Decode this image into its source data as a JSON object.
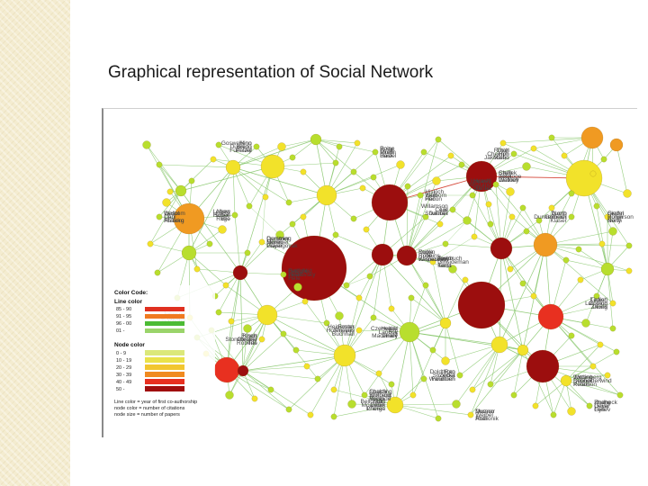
{
  "slide": {
    "title": "Graphical representation of Social Network"
  },
  "colors": {
    "edge": "#86c76a",
    "edge_red": "#d23a2a",
    "node_yellow": "#f2e22a",
    "node_lightgreen": "#b8de2e",
    "node_orange": "#f09a22",
    "node_red": "#e83020",
    "node_darkred": "#9c0e0e"
  },
  "legend": {
    "heading": "Color Code:",
    "line_heading": "Line color",
    "line_items": [
      {
        "label": "85 - 90",
        "color": "#e03020"
      },
      {
        "label": "91 - 95",
        "color": "#f07a20"
      },
      {
        "label": "96 - 00",
        "color": "#4cbb34"
      },
      {
        "label": "01 -",
        "color": "#9ad46a"
      }
    ],
    "node_heading": "Node color",
    "node_items": [
      {
        "label": "0 - 9",
        "color": "#dbe87a"
      },
      {
        "label": "10 - 19",
        "color": "#eae24a"
      },
      {
        "label": "20 - 29",
        "color": "#f2c630"
      },
      {
        "label": "30 - 39",
        "color": "#f08a20"
      },
      {
        "label": "40 - 49",
        "color": "#e83020"
      },
      {
        "label": "50 -",
        "color": "#a00e0e"
      }
    ],
    "notes": [
      "Line color = year of first co-authorship",
      "node color = number of citations",
      "node size = number of papers"
    ]
  },
  "network": {
    "labels": [
      "Chen",
      "Landoy",
      "Wisniowsky",
      "Belloradu",
      "Schneiderwind",
      "Furinsky",
      "Poise",
      "Hoh",
      "North",
      "Ledish",
      "Deyel",
      "Wandtuch",
      "Spalding",
      "Stonebroker",
      "Prasegoyak",
      "Alken",
      "Chu",
      "Dauber",
      "Taylor",
      "Hofenstein",
      "Podon",
      "Igarashi",
      "Zelikovsky",
      "Cheng",
      "Muzner",
      "Dunkelmeier",
      "Dietrich",
      "Czerwecki",
      "Robbins",
      "Lhoren",
      "Jording",
      "Bredo",
      "Baidel",
      "Thiel",
      "Pulkerson",
      "Lewis",
      "Zhang",
      "Stroeber",
      "Roobide",
      "Knorr",
      "Hemmel",
      "Bro",
      "Gesol",
      "Cecil",
      "Kerst",
      "Heineman",
      "Welborn",
      "Ullman",
      "Bellfuhlid",
      "Kriegel",
      "Aharonik",
      "North",
      "Ecfoloqe",
      "Mackinley",
      "Yorke",
      "Moalihan",
      "Peterson",
      "Goswelleno",
      "Pirelli",
      "Jakobsen",
      "Siedel",
      "Lamping",
      "Fenev",
      "Rao",
      "Winnicot",
      "Roberts",
      "Gerstner",
      "Scholl",
      "Ahlberg",
      "Willamson",
      "Ginsideman",
      "Buchhall",
      "Hiskich",
      "Wistrand",
      "Hele",
      "Johnson",
      "Weibel",
      "Klaser",
      "Steffek",
      "Fsk",
      "Kerpeckjew",
      "Mart",
      "Deohor",
      "Pelzel",
      "Boey",
      "Cheerjm",
      "Berty",
      "Tiekerj",
      "Gaisy",
      "Fourmen",
      "Chuchi",
      "Oleigne",
      "Gayer",
      "Lebow",
      "Dahl",
      "Shulman",
      "Averbuch",
      "Thieves",
      "Her",
      "Howell",
      "Heath",
      "Trasquez",
      "Duraco",
      "Golbrich",
      "Walkley",
      "Heitier",
      "Rolle",
      "Prange",
      "Wittenberg",
      "Dunning",
      "Hosk",
      "Rotch",
      "Bohm",
      "Zhong",
      "Rodheck",
      "Zecka",
      "Yorsp",
      "Frisch",
      "Moreu",
      "Ruge",
      "Walbom",
      "Lie",
      "Tents",
      "Foster",
      "Tsun",
      "Sanha",
      "Gauglie",
      "Forche",
      "Roth",
      "Dumb",
      "Jeon",
      "Dhahr",
      "Duplin",
      "Dabik",
      "Kobon",
      "Hinn",
      "Mulhn",
      "Malho",
      "Grahn",
      "Gotrich",
      "Gyri",
      "Doldthorn",
      "Stolberg",
      "Tee",
      "Duniming",
      "Hoffen",
      "Hsaeko"
    ]
  }
}
